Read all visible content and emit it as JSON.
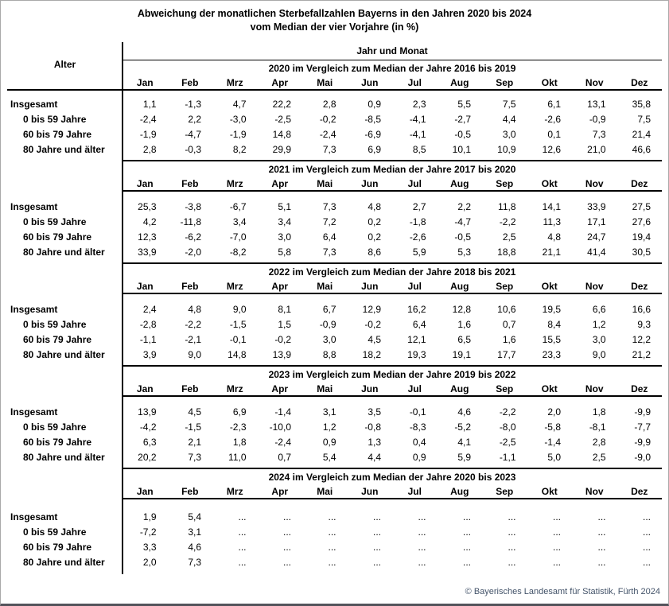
{
  "title": {
    "line1": "Abweichung der monatlichen Sterbefallzahlen Bayerns in den Jahren 2020 bis 2024",
    "line2": "vom Median der vier Vorjahre (in %)"
  },
  "table": {
    "corner_label": "Alter",
    "top_header": "Jahr und Monat",
    "months": [
      "Jan",
      "Feb",
      "Mrz",
      "Apr",
      "Mai",
      "Jun",
      "Jul",
      "Aug",
      "Sep",
      "Okt",
      "Nov",
      "Dez"
    ],
    "sections": [
      {
        "header": "2020 im Vergleich zum Median der Jahre 2016 bis 2019",
        "rows": [
          {
            "label": "Insgesamt",
            "values": [
              "1,1",
              "-1,3",
              "4,7",
              "22,2",
              "2,8",
              "0,9",
              "2,3",
              "5,5",
              "7,5",
              "6,1",
              "13,1",
              "35,8"
            ]
          },
          {
            "label": "0 bis 59 Jahre",
            "values": [
              "-2,4",
              "2,2",
              "-3,0",
              "-2,5",
              "-0,2",
              "-8,5",
              "-4,1",
              "-2,7",
              "4,4",
              "-2,6",
              "-0,9",
              "7,5"
            ]
          },
          {
            "label": "60 bis 79 Jahre",
            "values": [
              "-1,9",
              "-4,7",
              "-1,9",
              "14,8",
              "-2,4",
              "-6,9",
              "-4,1",
              "-0,5",
              "3,0",
              "0,1",
              "7,3",
              "21,4"
            ]
          },
          {
            "label": "80 Jahre und älter",
            "values": [
              "2,8",
              "-0,3",
              "8,2",
              "29,9",
              "7,3",
              "6,9",
              "8,5",
              "10,1",
              "10,9",
              "12,6",
              "21,0",
              "46,6"
            ]
          }
        ]
      },
      {
        "header": "2021 im Vergleich zum Median der Jahre 2017 bis 2020",
        "rows": [
          {
            "label": "Insgesamt",
            "values": [
              "25,3",
              "-3,8",
              "-6,7",
              "5,1",
              "7,3",
              "4,8",
              "2,7",
              "2,2",
              "11,8",
              "14,1",
              "33,9",
              "27,5"
            ]
          },
          {
            "label": "0 bis 59 Jahre",
            "values": [
              "4,2",
              "-11,8",
              "3,4",
              "3,4",
              "7,2",
              "0,2",
              "-1,8",
              "-4,7",
              "-2,2",
              "11,3",
              "17,1",
              "27,6"
            ]
          },
          {
            "label": "60 bis 79 Jahre",
            "values": [
              "12,3",
              "-6,2",
              "-7,0",
              "3,0",
              "6,4",
              "0,2",
              "-2,6",
              "-0,5",
              "2,5",
              "4,8",
              "24,7",
              "19,4"
            ]
          },
          {
            "label": "80 Jahre und älter",
            "values": [
              "33,9",
              "-2,0",
              "-8,2",
              "5,8",
              "7,3",
              "8,6",
              "5,9",
              "5,3",
              "18,8",
              "21,1",
              "41,4",
              "30,5"
            ]
          }
        ]
      },
      {
        "header": "2022 im Vergleich zum Median der Jahre 2018 bis 2021",
        "rows": [
          {
            "label": "Insgesamt",
            "values": [
              "2,4",
              "4,8",
              "9,0",
              "8,1",
              "6,7",
              "12,9",
              "16,2",
              "12,8",
              "10,6",
              "19,5",
              "6,6",
              "16,6"
            ]
          },
          {
            "label": "0 bis 59 Jahre",
            "values": [
              "-2,8",
              "-2,2",
              "-1,5",
              "1,5",
              "-0,9",
              "-0,2",
              "6,4",
              "1,6",
              "0,7",
              "8,4",
              "1,2",
              "9,3"
            ]
          },
          {
            "label": "60 bis 79 Jahre",
            "values": [
              "-1,1",
              "-2,1",
              "-0,1",
              "-0,2",
              "3,0",
              "4,5",
              "12,1",
              "6,5",
              "1,6",
              "15,5",
              "3,0",
              "12,2"
            ]
          },
          {
            "label": "80 Jahre und älter",
            "values": [
              "3,9",
              "9,0",
              "14,8",
              "13,9",
              "8,8",
              "18,2",
              "19,3",
              "19,1",
              "17,7",
              "23,3",
              "9,0",
              "21,2"
            ]
          }
        ]
      },
      {
        "header": "2023 im Vergleich zum Median der Jahre 2019 bis 2022",
        "rows": [
          {
            "label": "Insgesamt",
            "values": [
              "13,9",
              "4,5",
              "6,9",
              "-1,4",
              "3,1",
              "3,5",
              "-0,1",
              "4,6",
              "-2,2",
              "2,0",
              "1,8",
              "-9,9"
            ]
          },
          {
            "label": "0 bis 59 Jahre",
            "values": [
              "-4,2",
              "-1,5",
              "-2,3",
              "-10,0",
              "1,2",
              "-0,8",
              "-8,3",
              "-5,2",
              "-8,0",
              "-5,8",
              "-8,1",
              "-7,7"
            ]
          },
          {
            "label": "60 bis 79 Jahre",
            "values": [
              "6,3",
              "2,1",
              "1,8",
              "-2,4",
              "0,9",
              "1,3",
              "0,4",
              "4,1",
              "-2,5",
              "-1,4",
              "2,8",
              "-9,9"
            ]
          },
          {
            "label": "80 Jahre und älter",
            "values": [
              "20,2",
              "7,3",
              "11,0",
              "0,7",
              "5,4",
              "4,4",
              "0,9",
              "5,9",
              "-1,1",
              "5,0",
              "2,5",
              "-9,0"
            ]
          }
        ]
      },
      {
        "header": "2024 im Vergleich zum Median der Jahre 2020 bis 2023",
        "rows": [
          {
            "label": "Insgesamt",
            "values": [
              "1,9",
              "5,4",
              "...",
              "...",
              "...",
              "...",
              "...",
              "...",
              "...",
              "...",
              "...",
              "..."
            ]
          },
          {
            "label": "0 bis 59 Jahre",
            "values": [
              "-7,2",
              "3,1",
              "...",
              "...",
              "...",
              "...",
              "...",
              "...",
              "...",
              "...",
              "...",
              "..."
            ]
          },
          {
            "label": "60 bis 79 Jahre",
            "values": [
              "3,3",
              "4,6",
              "...",
              "...",
              "...",
              "...",
              "...",
              "...",
              "...",
              "...",
              "...",
              "..."
            ]
          },
          {
            "label": "80 Jahre und älter",
            "values": [
              "2,0",
              "7,3",
              "...",
              "...",
              "...",
              "...",
              "...",
              "...",
              "...",
              "...",
              "...",
              "..."
            ]
          }
        ]
      }
    ]
  },
  "footer": {
    "copyright": "© Bayerisches Landesamt für Statistik, Fürth 2024"
  },
  "colors": {
    "rule": "#000000",
    "frame_border": "#a9a9a9",
    "bottom_bar": "#53535b",
    "footer_text": "#44546a"
  }
}
